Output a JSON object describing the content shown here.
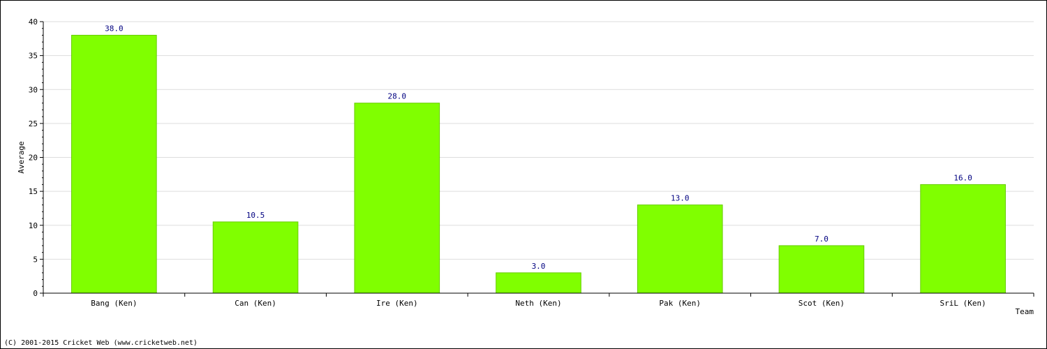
{
  "chart_data": {
    "type": "bar",
    "categories": [
      "Bang (Ken)",
      "Can (Ken)",
      "Ire (Ken)",
      "Neth (Ken)",
      "Pak (Ken)",
      "Scot (Ken)",
      "SriL (Ken)"
    ],
    "values": [
      38.0,
      10.5,
      28.0,
      3.0,
      13.0,
      7.0,
      16.0
    ],
    "value_labels": [
      "38.0",
      "10.5",
      "28.0",
      "3.0",
      "13.0",
      "7.0",
      "16.0"
    ],
    "title": "",
    "xlabel": "Team",
    "ylabel": "Average",
    "ylim": [
      0,
      40
    ],
    "yticks": [
      0,
      5,
      10,
      15,
      20,
      25,
      30,
      35,
      40
    ],
    "grid": true,
    "colors": {
      "bar_fill": "#80ff00",
      "bar_stroke": "#66cc00",
      "value_label": "#000080",
      "grid": "#dddddd"
    }
  },
  "footer": "(C) 2001-2015 Cricket Web (www.cricketweb.net)"
}
